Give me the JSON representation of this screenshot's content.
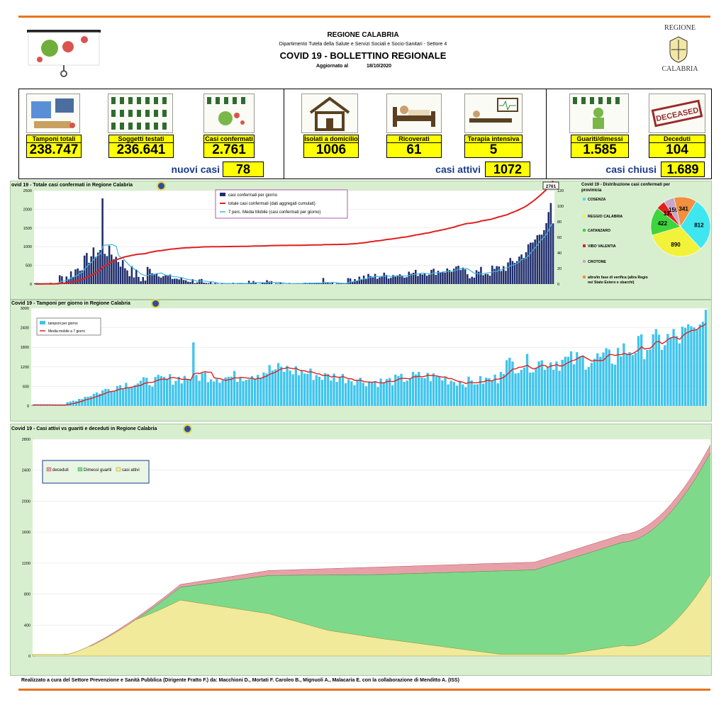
{
  "header": {
    "region": "REGIONE CALABRIA",
    "department": "Dipartimento Tutela della Salute e Servizi Sociali e Socio-Sanitari - Settore 4",
    "title": "COVID 19 - BOLLETTINO REGIONALE",
    "updated_label": "Aggiornato al",
    "updated_date": "18/10/2020",
    "logo_top": "REGIONE",
    "logo_bottom": "CALABRIA"
  },
  "kpis": {
    "tamponi": {
      "label": "Tamponi totali",
      "value": "238.747"
    },
    "soggetti": {
      "label": "Soggetti testati",
      "value": "236.641"
    },
    "casi": {
      "label": "Casi confermati",
      "value": "2.761"
    },
    "isolati": {
      "label": "Isolati a domicilio",
      "value": "1006"
    },
    "ricoverati": {
      "label": "Ricoverati",
      "value": "61"
    },
    "terapia": {
      "label": "Terapia intensiva",
      "value": "5"
    },
    "guariti": {
      "label": "Guariti/dimessi",
      "value": "1.585"
    },
    "deceduti": {
      "label": "Deceduti",
      "value": "104"
    },
    "deceased_stamp": "DECEASED"
  },
  "summary": {
    "nuovi_label": "nuovi casi",
    "nuovi_value": "78",
    "attivi_label": "casi attivi",
    "attivi_value": "1072",
    "chiusi_label": "casi chiusi",
    "chiusi_value": "1.689"
  },
  "chart_data": [
    {
      "type": "bar",
      "title": "ovid 19 - Totale casi confermati in Regione Calabria",
      "ylim": [
        0,
        2500
      ],
      "y2lim": [
        0,
        120
      ],
      "yticks": [
        "2500",
        "2000",
        "1500",
        "1000",
        "500",
        "0"
      ],
      "y2ticks": [
        "120",
        "100",
        "80",
        "60",
        "40",
        "20",
        "0"
      ],
      "end_label": "2761",
      "x_start": "2/3",
      "x_end": "18/10",
      "series": [
        {
          "name": "casi confermati per giorno",
          "color": "#1f2d6b",
          "axis": "right"
        },
        {
          "name": "totale casi confermati (dati aggregati cumulati)",
          "color": "#e02020",
          "axis": "left"
        },
        {
          "name": "7 perc. Media Mobile (casi confermati per giorno)",
          "color": "#3fb6e6",
          "axis": "right"
        }
      ]
    },
    {
      "type": "pie",
      "title": "Covid 19 - Distribuzione casi confermati per provinicia",
      "slices": [
        {
          "name": "COSENZA",
          "value": 812,
          "color": "#3ee6f0"
        },
        {
          "name": "REGGIO CALABRIA",
          "value": 890,
          "color": "#f2f23a"
        },
        {
          "name": "CATANZARO",
          "value": 422,
          "color": "#3ed43e"
        },
        {
          "name": "VIBO VALENTIA",
          "value": 137,
          "color": "#e02020"
        },
        {
          "name": "CROTONE",
          "value": 159,
          "color": "#c8a6c8"
        },
        {
          "name": "altro/in fase di verifica (altra Regione/ Stato Estero e sbarchi)",
          "value": 341,
          "color": "#f09040"
        }
      ]
    },
    {
      "type": "bar",
      "title": "Covid 19 - Tamponi per giorno in Regione Calabria",
      "ylim": [
        0,
        3000
      ],
      "yticks": [
        "3000",
        "2400",
        "1800",
        "1200",
        "600",
        "0"
      ],
      "series": [
        {
          "name": "tamponi per giorno",
          "color": "#3fc4ec"
        },
        {
          "name": "Media mobile a 7 giorni",
          "color": "#e02020"
        }
      ]
    },
    {
      "type": "area",
      "title": "Covid 19 - Casi attivi vs guariti e deceduti in Regione Calabria",
      "ylim": [
        0,
        2800
      ],
      "yticks": [
        "2800",
        "2400",
        "2000",
        "1600",
        "1200",
        "800",
        "400",
        "0"
      ],
      "series": [
        {
          "name": "deceduti",
          "color": "#e8a0a8"
        },
        {
          "name": "Dimessi guariti",
          "color": "#7fd98a"
        },
        {
          "name": "casi attivi",
          "color": "#f0ea9a"
        }
      ]
    }
  ],
  "footer": "Realizzato a cura del Settore Prevenzione e Sanità Pubblica (Dirigente Fratto F.) da:  Macchioni D., Mortati F. Caroleo B., Mignuoli A., Malacaria E. con la collaborazione di Menditto A. (ISS)"
}
